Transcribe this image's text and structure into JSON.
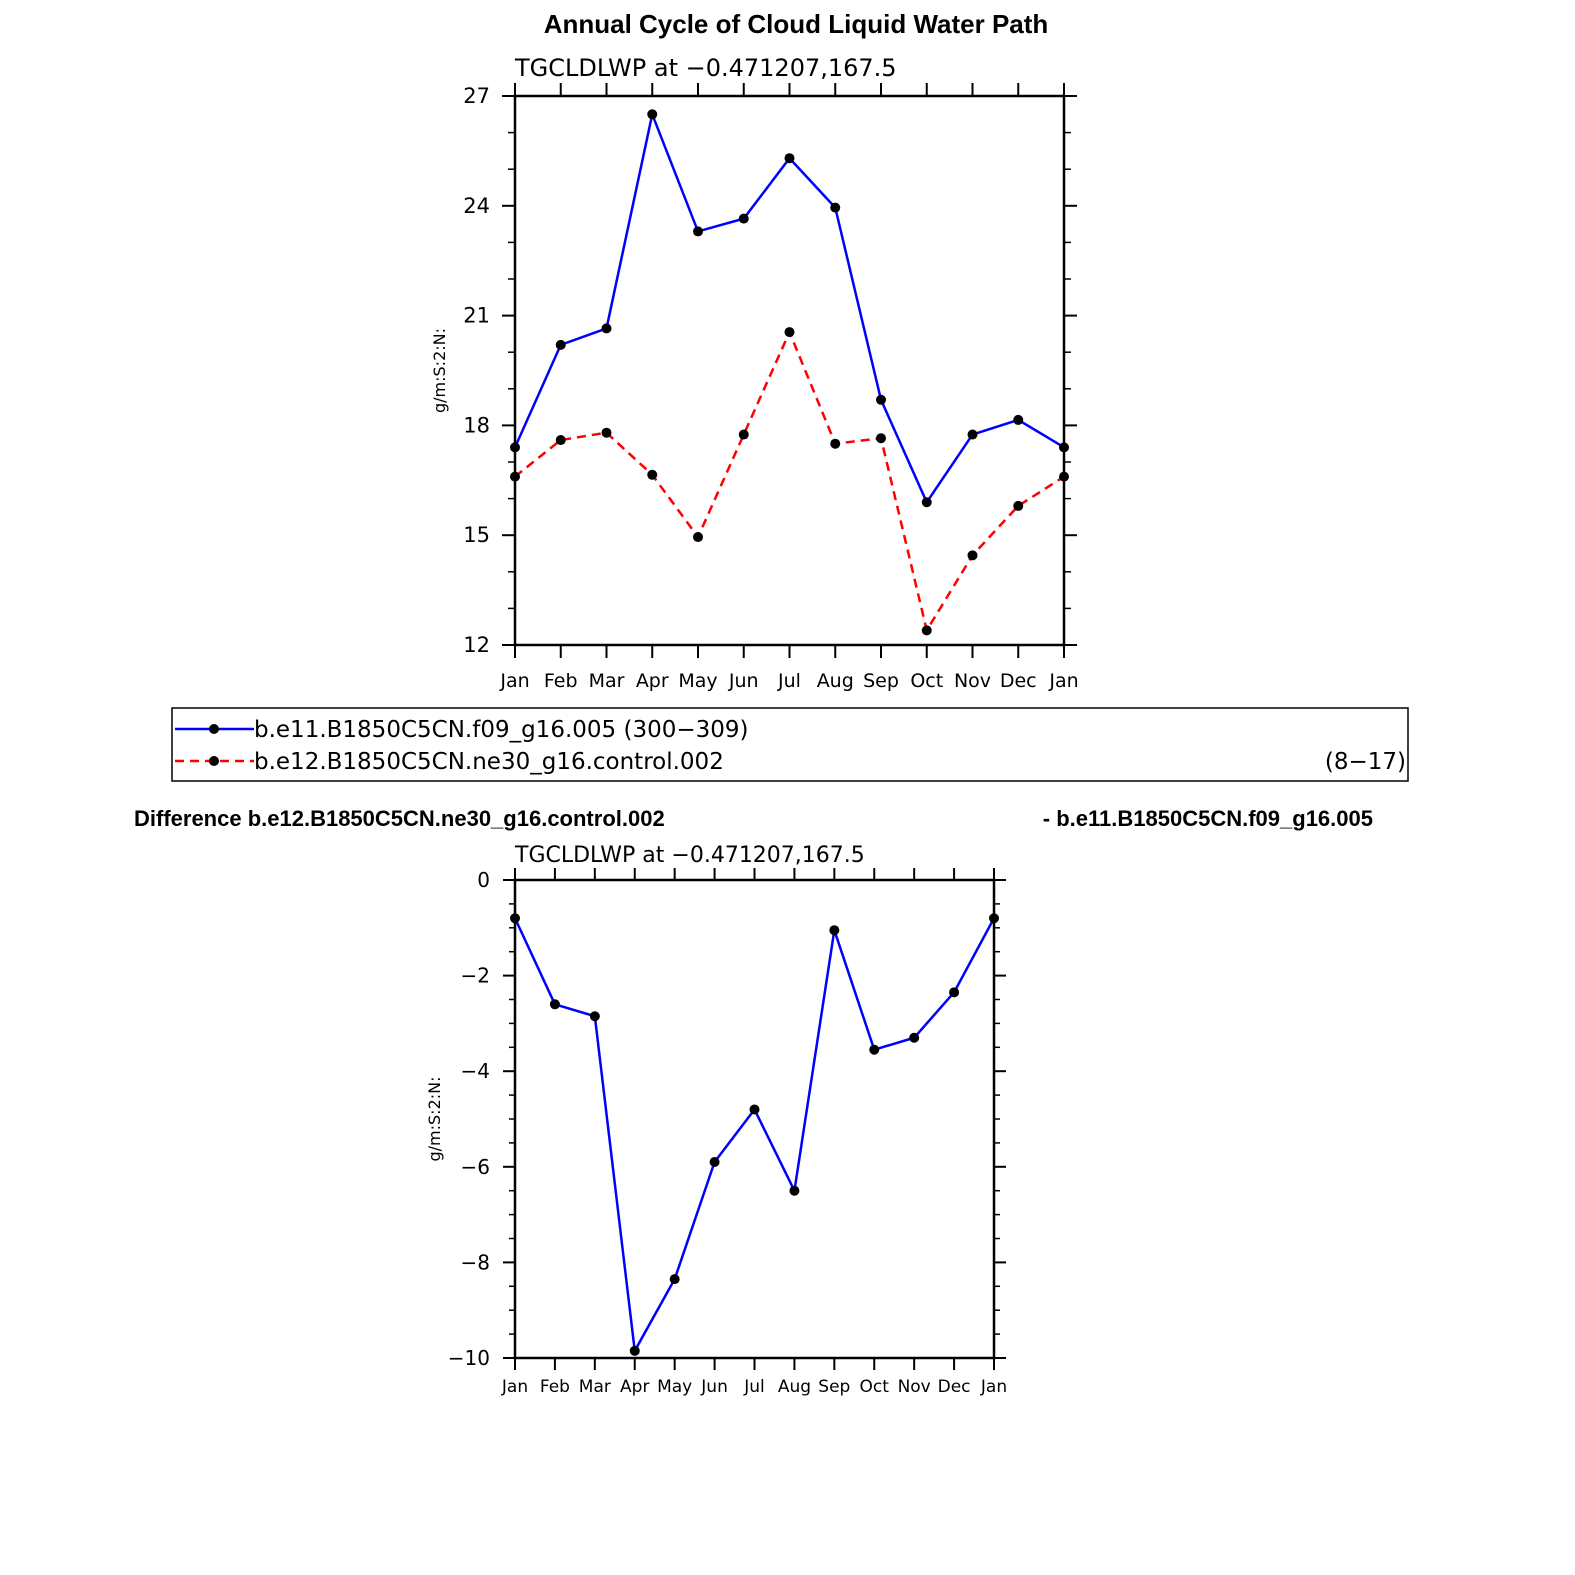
{
  "page": {
    "title": "Annual Cycle of Cloud Liquid Water Path",
    "difference_title_left": "Difference b.e12.B1850C5CN.ne30_g16.control.002",
    "difference_title_right": "- b.e11.B1850C5CN.f09_g16.005"
  },
  "legend": {
    "items": [
      {
        "label": "b.e11.B1850C5CN.f09_g16.005 (300−309)",
        "suffix": "",
        "color": "#0000ff",
        "dashed": false
      },
      {
        "label": "b.e12.B1850C5CN.ne30_g16.control.002",
        "suffix": "(8−17)",
        "color": "#ff0000",
        "dashed": true
      }
    ]
  },
  "chart_data": [
    {
      "type": "line",
      "subtitle": "TGCLDLWP  at  −0.471207,167.5",
      "ylabel": "g/m:S:2:N:",
      "categories": [
        "Jan",
        "Feb",
        "Mar",
        "Apr",
        "May",
        "Jun",
        "Jul",
        "Aug",
        "Sep",
        "Oct",
        "Nov",
        "Dec",
        "Jan"
      ],
      "ylim": [
        12,
        27
      ],
      "yticks": [
        "12",
        "15",
        "18",
        "21",
        "24",
        "27"
      ],
      "ytick_values": [
        12,
        15,
        18,
        21,
        24,
        27
      ],
      "series": [
        {
          "color": "#0000ff",
          "dashed": false,
          "values": [
            17.4,
            20.2,
            20.65,
            26.5,
            23.3,
            23.65,
            25.3,
            23.95,
            18.7,
            15.9,
            17.75,
            18.15,
            17.4
          ]
        },
        {
          "color": "#ff0000",
          "dashed": true,
          "values": [
            16.6,
            17.6,
            17.8,
            16.65,
            14.95,
            17.75,
            20.55,
            17.5,
            17.65,
            12.4,
            14.45,
            15.8,
            16.6
          ]
        }
      ]
    },
    {
      "type": "line",
      "subtitle": "TGCLDLWP  at  −0.471207,167.5",
      "ylabel": "g/m:S:2:N:",
      "categories": [
        "Jan",
        "Feb",
        "Mar",
        "Apr",
        "May",
        "Jun",
        "Jul",
        "Aug",
        "Sep",
        "Oct",
        "Nov",
        "Dec",
        "Jan"
      ],
      "ylim": [
        -10,
        0
      ],
      "yticks": [
        "−10",
        "−8",
        "−6",
        "−4",
        "−2",
        "0"
      ],
      "ytick_values": [
        -10,
        -8,
        -6,
        -4,
        -2,
        0
      ],
      "series": [
        {
          "color": "#0000ff",
          "dashed": false,
          "values": [
            -0.8,
            -2.6,
            -2.85,
            -9.85,
            -8.35,
            -5.9,
            -4.8,
            -6.5,
            -1.05,
            -3.55,
            -3.3,
            -2.35,
            -0.8
          ]
        }
      ]
    }
  ]
}
